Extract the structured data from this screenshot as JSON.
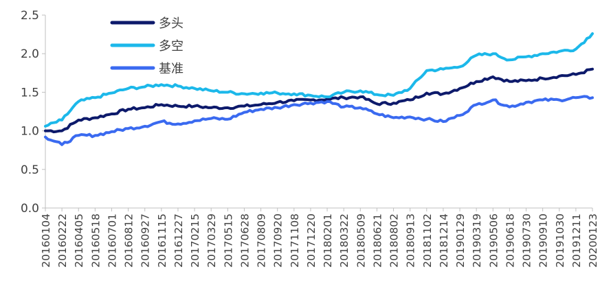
{
  "chart_data": {
    "type": "line",
    "title": "",
    "xlabel": "",
    "ylabel": "",
    "ylim": [
      0,
      2.5
    ],
    "yticks": [
      "0.0",
      "0.5",
      "1.0",
      "1.5",
      "2.0",
      "2.5"
    ],
    "grid": false,
    "legend_position": "top-left",
    "x_tick_labels": [
      "20160104",
      "20160222",
      "20160405",
      "20160518",
      "20160701",
      "20160812",
      "20160927",
      "20161115",
      "20161227",
      "20170215",
      "20170329",
      "20170515",
      "20170628",
      "20170809",
      "20170920",
      "20171108",
      "20171220",
      "20180201",
      "20180322",
      "20180509",
      "20180621",
      "20180802",
      "20180913",
      "20181102",
      "20181214",
      "20190129",
      "20190319",
      "20190506",
      "20190618",
      "20190730",
      "20190910",
      "20191030",
      "20191211",
      "20200123"
    ],
    "series": [
      {
        "name": "多头",
        "color": "#0d1a6b",
        "values": [
          1.0,
          1.0,
          1.14,
          1.17,
          1.22,
          1.28,
          1.3,
          1.34,
          1.32,
          1.32,
          1.3,
          1.3,
          1.32,
          1.34,
          1.37,
          1.39,
          1.4,
          1.41,
          1.43,
          1.44,
          1.35,
          1.36,
          1.4,
          1.49,
          1.48,
          1.55,
          1.64,
          1.7,
          1.64,
          1.65,
          1.68,
          1.71,
          1.73,
          1.8
        ]
      },
      {
        "name": "多空",
        "color": "#1cb8ea",
        "values": [
          1.06,
          1.14,
          1.38,
          1.43,
          1.49,
          1.55,
          1.57,
          1.6,
          1.58,
          1.55,
          1.52,
          1.5,
          1.48,
          1.49,
          1.49,
          1.48,
          1.46,
          1.44,
          1.5,
          1.52,
          1.47,
          1.46,
          1.55,
          1.78,
          1.8,
          1.83,
          1.98,
          2.0,
          1.92,
          1.96,
          2.0,
          2.03,
          2.06,
          2.26
        ]
      },
      {
        "name": "基准",
        "color": "#3a6af0",
        "values": [
          0.92,
          0.82,
          0.94,
          0.94,
          0.99,
          1.03,
          1.06,
          1.12,
          1.09,
          1.13,
          1.16,
          1.15,
          1.24,
          1.28,
          1.3,
          1.34,
          1.36,
          1.38,
          1.31,
          1.3,
          1.22,
          1.17,
          1.18,
          1.15,
          1.12,
          1.2,
          1.34,
          1.4,
          1.31,
          1.37,
          1.4,
          1.4,
          1.43,
          1.43
        ]
      }
    ]
  }
}
